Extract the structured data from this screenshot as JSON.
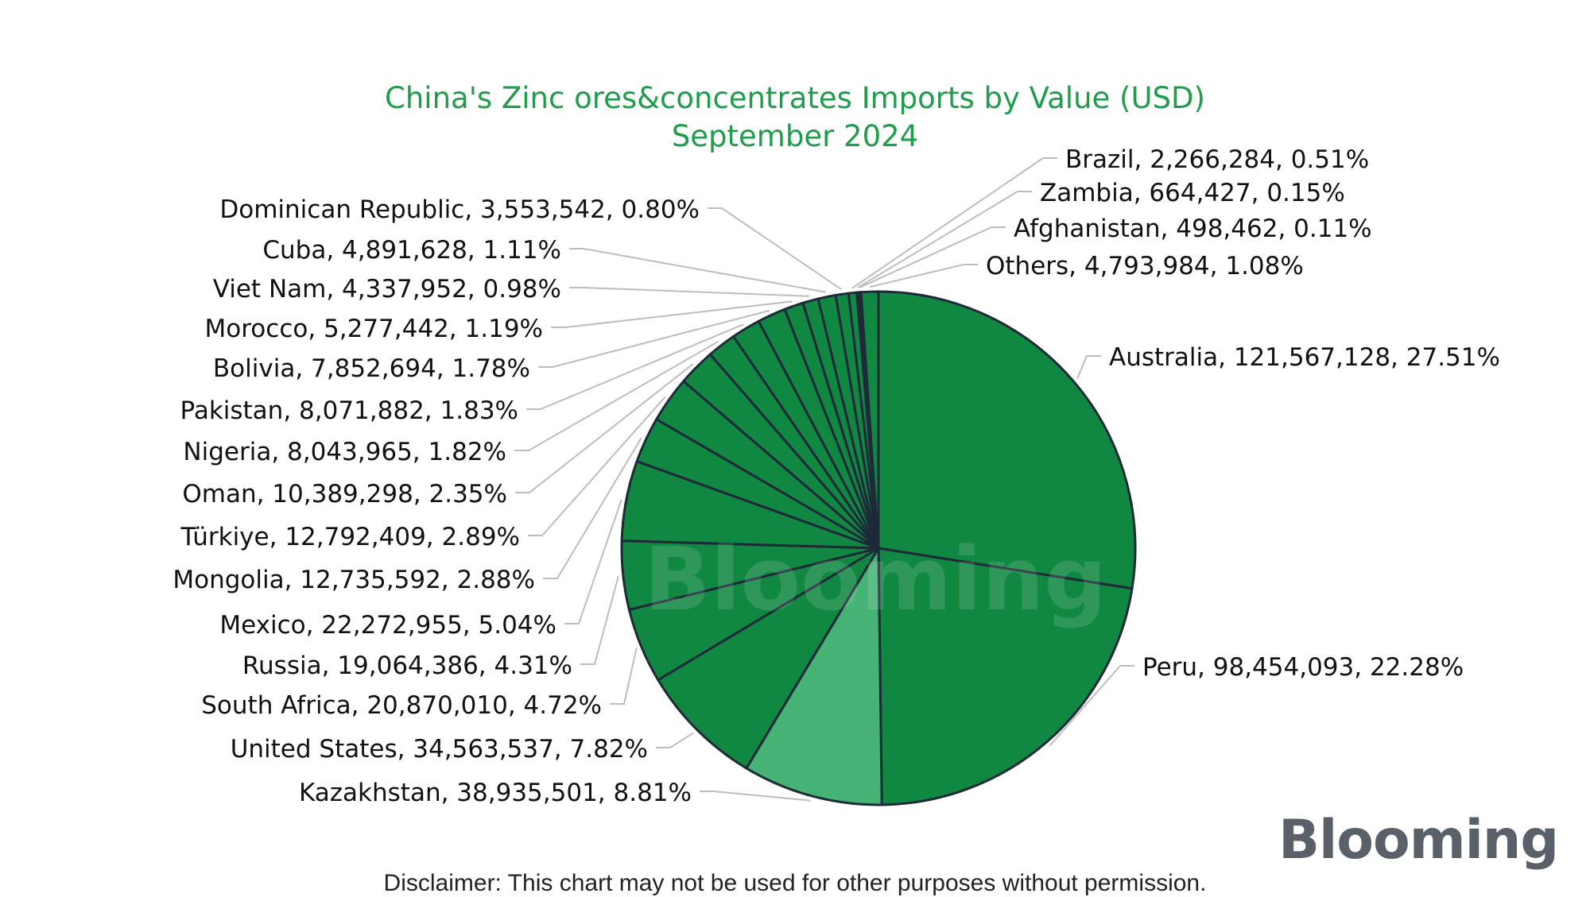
{
  "chart_data": {
    "type": "pie",
    "title": "China's Zinc ores&concentrates Imports by Value (USD)",
    "subtitle": "September 2024",
    "slices": [
      {
        "label": "Australia",
        "value": 121567128,
        "percent": "27.51%",
        "value_text": "121,567,128",
        "color": "#118841"
      },
      {
        "label": "Peru",
        "value": 98454093,
        "percent": "22.28%",
        "value_text": "98,454,093",
        "color": "#118841"
      },
      {
        "label": "Kazakhstan",
        "value": 38935501,
        "percent": "8.81%",
        "value_text": "38,935,501",
        "color": "#44b374"
      },
      {
        "label": "United States",
        "value": 34563537,
        "percent": "7.82%",
        "value_text": "34,563,537",
        "color": "#118841"
      },
      {
        "label": "South Africa",
        "value": 20870010,
        "percent": "4.72%",
        "value_text": "20,870,010",
        "color": "#118841"
      },
      {
        "label": "Russia",
        "value": 19064386,
        "percent": "4.31%",
        "value_text": "19,064,386",
        "color": "#118841"
      },
      {
        "label": "Mexico",
        "value": 22272955,
        "percent": "5.04%",
        "value_text": "22,272,955",
        "color": "#118841"
      },
      {
        "label": "Mongolia",
        "value": 12735592,
        "percent": "2.88%",
        "value_text": "12,735,592",
        "color": "#118841"
      },
      {
        "label": "Türkiye",
        "value": 12792409,
        "percent": "2.89%",
        "value_text": "12,792,409",
        "color": "#118841"
      },
      {
        "label": "Oman",
        "value": 10389298,
        "percent": "2.35%",
        "value_text": "10,389,298",
        "color": "#118841"
      },
      {
        "label": "Nigeria",
        "value": 8043965,
        "percent": "1.82%",
        "value_text": "8,043,965",
        "color": "#118841"
      },
      {
        "label": "Pakistan",
        "value": 8071882,
        "percent": "1.83%",
        "value_text": "8,071,882",
        "color": "#118841"
      },
      {
        "label": "Bolivia",
        "value": 7852694,
        "percent": "1.78%",
        "value_text": "7,852,694",
        "color": "#118841"
      },
      {
        "label": "Morocco",
        "value": 5277442,
        "percent": "1.19%",
        "value_text": "5,277,442",
        "color": "#118841"
      },
      {
        "label": "Viet Nam",
        "value": 4337952,
        "percent": "0.98%",
        "value_text": "4,337,952",
        "color": "#118841"
      },
      {
        "label": "Cuba",
        "value": 4891628,
        "percent": "1.11%",
        "value_text": "4,891,628",
        "color": "#118841"
      },
      {
        "label": "Dominican Republic",
        "value": 3553542,
        "percent": "0.80%",
        "value_text": "3,553,542",
        "color": "#118841"
      },
      {
        "label": "Brazil",
        "value": 2266284,
        "percent": "0.51%",
        "value_text": "2,266,284",
        "color": "#118841"
      },
      {
        "label": "Zambia",
        "value": 664427,
        "percent": "0.15%",
        "value_text": "664,427",
        "color": "#118841"
      },
      {
        "label": "Afghanistan",
        "value": 498462,
        "percent": "0.11%",
        "value_text": "498,462",
        "color": "#118841"
      },
      {
        "label": "Others",
        "value": 4793984,
        "percent": "1.08%",
        "value_text": "4,793,984",
        "color": "#118841"
      }
    ],
    "legend": "none"
  },
  "watermark": "Blooming",
  "logo": "Blooming",
  "disclaimer": "Disclaimer: This chart may not be used for other purposes without permission.",
  "colors": {
    "title": "#1f9d4b",
    "slice_border": "#1e2a3a",
    "leader": "#bdbdbd"
  }
}
